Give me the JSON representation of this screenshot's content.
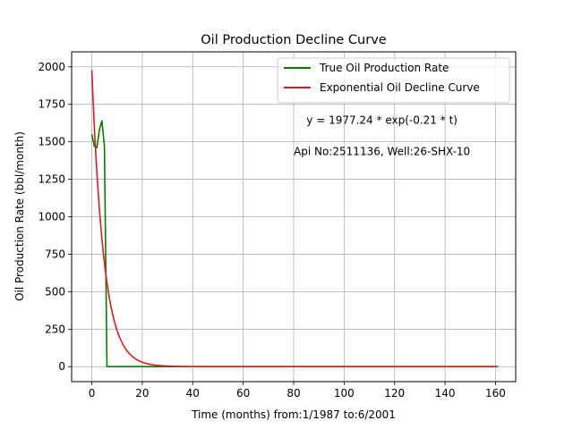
{
  "chart_data": {
    "type": "line",
    "title": "Oil Production Decline Curve",
    "xlabel": "Time (months) from:1/1987 to:6/2001",
    "ylabel": "Oil Production Rate (bbl/month)",
    "xlim": [
      -8,
      168
    ],
    "ylim": [
      -100,
      2100
    ],
    "xticks": [
      0,
      20,
      40,
      60,
      80,
      100,
      120,
      140,
      160
    ],
    "yticks": [
      0,
      250,
      500,
      750,
      1000,
      1250,
      1500,
      1750,
      2000
    ],
    "grid": true,
    "legend_placement": "top-right",
    "annotations": [
      {
        "text": "y = 1977.24 * exp(-0.21 * t)",
        "x": 115,
        "y": 1620
      },
      {
        "text": "Api No:2511136, Well:26-SHX-10",
        "x": 115,
        "y": 1410
      }
    ],
    "series": [
      {
        "name": "True Oil Production Rate",
        "color": "#008000",
        "x": [
          0,
          1,
          2,
          3,
          4,
          5,
          6,
          7,
          161
        ],
        "y": [
          1550,
          1470,
          1460,
          1580,
          1640,
          1470,
          0,
          0,
          0
        ]
      },
      {
        "name": "Exponential Oil Decline Curve",
        "color": "#e31a1c",
        "model": {
          "a": 1977.24,
          "b": -0.21,
          "t_start": 0,
          "t_end": 161
        }
      }
    ]
  }
}
